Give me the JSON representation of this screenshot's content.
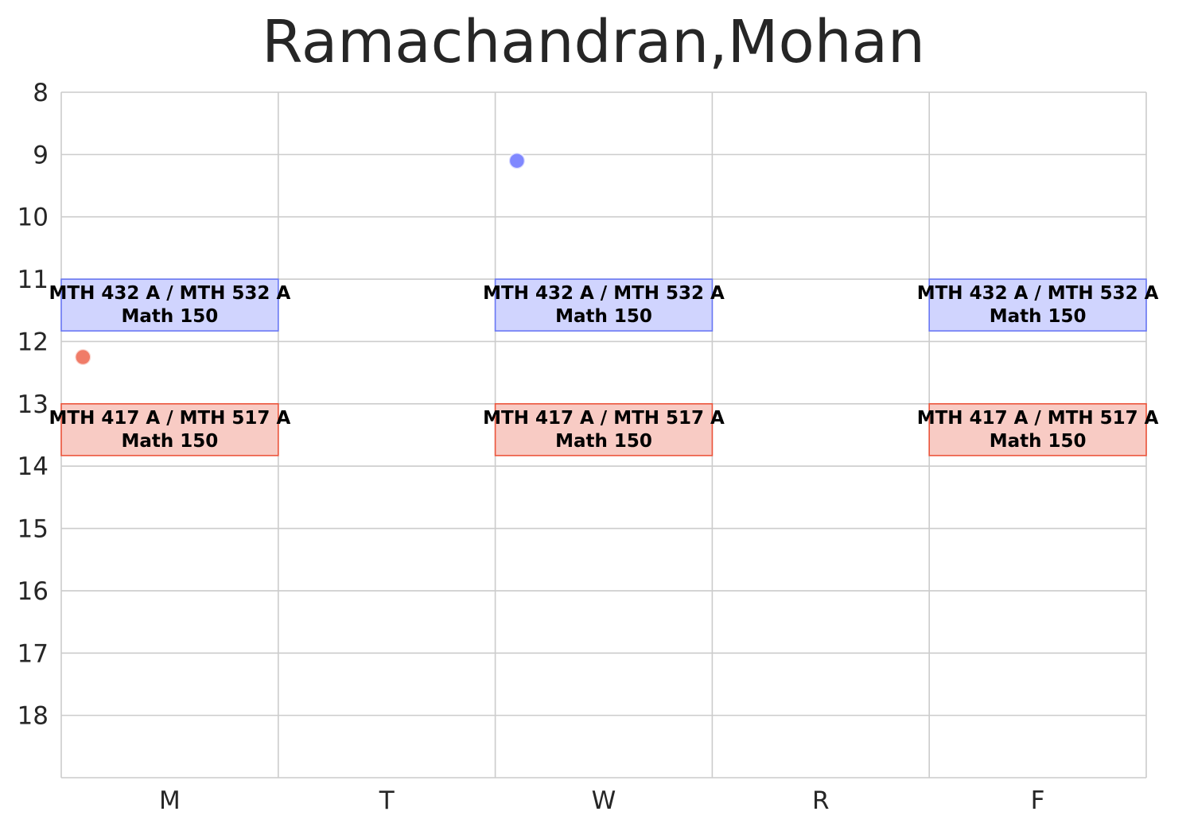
{
  "chart_data": {
    "type": "schedule",
    "title": "Ramachandran,Mohan",
    "xlabel": "",
    "ylabel": "",
    "categories": [
      "M",
      "T",
      "W",
      "R",
      "F"
    ],
    "y_ticks": [
      "8",
      "9",
      "10",
      "11",
      "12",
      "13",
      "14",
      "15",
      "16",
      "17",
      "18"
    ],
    "ylim": [
      19,
      8
    ],
    "y_inverted": true,
    "grid": true,
    "blocks": [
      {
        "day": "M",
        "start": 11.0,
        "end": 11.83,
        "line1": "MTH 432 A / MTH 532 A",
        "line2": "Math 150",
        "fill": "#d0d4fe",
        "edge": "#6a78f5"
      },
      {
        "day": "W",
        "start": 11.0,
        "end": 11.83,
        "line1": "MTH 432 A / MTH 532 A",
        "line2": "Math 150",
        "fill": "#d0d4fe",
        "edge": "#6a78f5"
      },
      {
        "day": "F",
        "start": 11.0,
        "end": 11.83,
        "line1": "MTH 432 A / MTH 532 A",
        "line2": "Math 150",
        "fill": "#d0d4fe",
        "edge": "#6a78f5"
      },
      {
        "day": "M",
        "start": 13.0,
        "end": 13.83,
        "line1": "MTH 417 A / MTH 517 A",
        "line2": "Math 150",
        "fill": "#f8cbc4",
        "edge": "#ec553c"
      },
      {
        "day": "W",
        "start": 13.0,
        "end": 13.83,
        "line1": "MTH 417 A / MTH 517 A",
        "line2": "Math 150",
        "fill": "#f8cbc4",
        "edge": "#ec553c"
      },
      {
        "day": "F",
        "start": 13.0,
        "end": 13.83,
        "line1": "MTH 417 A / MTH 517 A",
        "line2": "Math 150",
        "fill": "#f8cbc4",
        "edge": "#ec553c"
      }
    ],
    "points": [
      {
        "day": "W",
        "day_offset": 0.1,
        "time": 9.1,
        "color": "#8088ff"
      },
      {
        "day": "M",
        "day_offset": 0.1,
        "time": 12.25,
        "color": "#f07c68"
      }
    ]
  }
}
